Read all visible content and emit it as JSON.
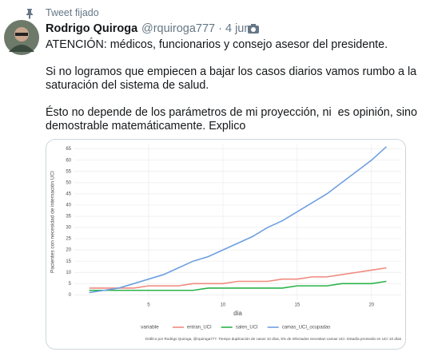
{
  "tweet": {
    "pinned": "Tweet fijado",
    "name": "Rodrigo Quiroga",
    "handle": "@rquiroga777 · 4 jun.",
    "paragraphs": [
      [
        "ATENCIÓN: médicos, funcionarios y consejo asesor del presidente."
      ],
      [
        "Si no logramos que empiecen a bajar los casos diarios vamos rumbo a la",
        "saturación del sistema de salud."
      ],
      [
        "Ésto no depende de los parámetros de mi proyección, ni  es opinión, sino",
        "demostrable matemáticamente. Explico"
      ]
    ]
  },
  "chart_data": {
    "type": "line",
    "xlabel": "dia",
    "ylabel": "Pacientes con necesidad de internación UCI",
    "legend_title": "variable",
    "caption": "Gráfico por Rodrigo Quiroga, @rquiroga777. Tiempo duplicación de casos 10 días, 5% de infectados necesitan camas UCI. Estadía promedio en UCI 10 días",
    "x": [
      1,
      2,
      3,
      4,
      5,
      6,
      7,
      8,
      9,
      10,
      11,
      12,
      13,
      14,
      15,
      16,
      17,
      18,
      19,
      20,
      21
    ],
    "xlim": [
      0,
      22
    ],
    "xticks": [
      5,
      10,
      15,
      20
    ],
    "ylim": [
      -2,
      67
    ],
    "yticks": [
      0,
      5,
      10,
      15,
      20,
      25,
      30,
      35,
      40,
      45,
      50,
      55,
      60,
      65
    ],
    "grid": true,
    "series": [
      {
        "name": "entran_UCI",
        "color": "#f08a7e",
        "values": [
          3,
          3,
          3,
          3,
          4,
          4,
          4,
          5,
          5,
          5,
          6,
          6,
          6,
          7,
          7,
          8,
          8,
          9,
          10,
          11,
          12
        ]
      },
      {
        "name": "salen_UCI",
        "color": "#2bb34a",
        "values": [
          2,
          2,
          2,
          2,
          2,
          2,
          2,
          2,
          3,
          3,
          3,
          3,
          3,
          3,
          4,
          4,
          4,
          5,
          5,
          5,
          6
        ]
      },
      {
        "name": "camas_UCI_ocupadas",
        "color": "#6f9fe0",
        "values": [
          1,
          2,
          3,
          5,
          7,
          9,
          12,
          15,
          17,
          20,
          23,
          26,
          30,
          33,
          37,
          41,
          45,
          50,
          55,
          60,
          66
        ]
      }
    ]
  }
}
